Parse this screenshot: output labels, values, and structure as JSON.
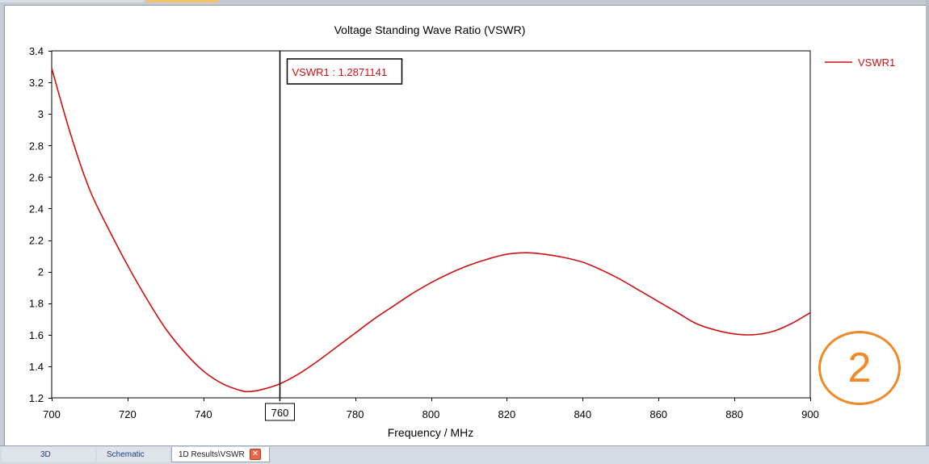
{
  "chart_data": {
    "type": "line",
    "title": "Voltage Standing Wave Ratio (VSWR)",
    "xlabel": "Frequency / MHz",
    "ylabel": "",
    "xlim": [
      700,
      900
    ],
    "ylim": [
      1.2,
      3.4
    ],
    "x_ticks": [
      "700",
      "720",
      "740",
      "760",
      "780",
      "800",
      "820",
      "840",
      "860",
      "880",
      "900"
    ],
    "y_ticks": [
      "1.2",
      "1.4",
      "1.6",
      "1.8",
      "2",
      "2.2",
      "2.4",
      "2.6",
      "2.8",
      "3",
      "3.2",
      "3.4"
    ],
    "grid": true,
    "legend_position": "top-right",
    "series": [
      {
        "name": "VSWR1",
        "color": "#cc1111",
        "x": [
          700,
          705,
          710,
          715,
          720,
          725,
          730,
          735,
          740,
          745,
          750,
          752,
          755,
          760,
          765,
          770,
          775,
          780,
          785,
          790,
          795,
          800,
          805,
          810,
          815,
          820,
          825,
          830,
          835,
          840,
          845,
          850,
          855,
          860,
          865,
          870,
          875,
          880,
          885,
          890,
          895,
          900
        ],
        "y": [
          3.29,
          2.87,
          2.52,
          2.27,
          2.04,
          1.83,
          1.64,
          1.49,
          1.37,
          1.29,
          1.245,
          1.24,
          1.25,
          1.2871141,
          1.35,
          1.43,
          1.52,
          1.61,
          1.7,
          1.78,
          1.86,
          1.93,
          1.99,
          2.04,
          2.08,
          2.11,
          2.12,
          2.11,
          2.09,
          2.06,
          2.01,
          1.95,
          1.88,
          1.81,
          1.74,
          1.67,
          1.63,
          1.605,
          1.6,
          1.62,
          1.67,
          1.74
        ]
      }
    ],
    "marker": {
      "x": 760,
      "x_label": "760",
      "readout": "VSWR1 : 1.2871141"
    }
  },
  "annotation": {
    "badge_text": "2",
    "badge_color": "#ef8a2b"
  },
  "tabs": [
    {
      "label": "3D",
      "active": false
    },
    {
      "label": "Schematic",
      "active": false
    },
    {
      "label": "1D Results\\VSWR",
      "active": true,
      "close_glyph": "✕"
    }
  ]
}
